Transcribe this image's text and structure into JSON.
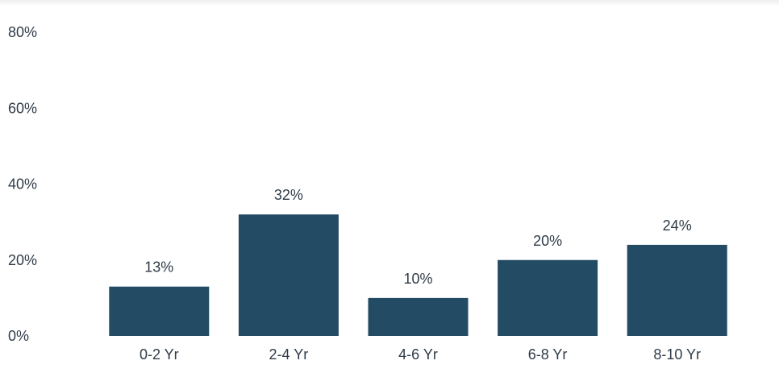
{
  "chart_data": {
    "type": "bar",
    "categories": [
      "0-2 Yr",
      "2-4 Yr",
      "4-6 Yr",
      "6-8 Yr",
      "8-10 Yr"
    ],
    "values": [
      13,
      32,
      10,
      20,
      24
    ],
    "data_labels": [
      "13%",
      "32%",
      "10%",
      "20%",
      "24%"
    ],
    "y_ticks": [
      {
        "value": 0,
        "label": "0%"
      },
      {
        "value": 20,
        "label": "20%"
      },
      {
        "value": 40,
        "label": "40%"
      },
      {
        "value": 60,
        "label": "60%"
      },
      {
        "value": 80,
        "label": "80%"
      }
    ],
    "ylim": [
      0,
      80
    ],
    "grid": false,
    "legend": "none",
    "bar_color": "#234b63"
  }
}
